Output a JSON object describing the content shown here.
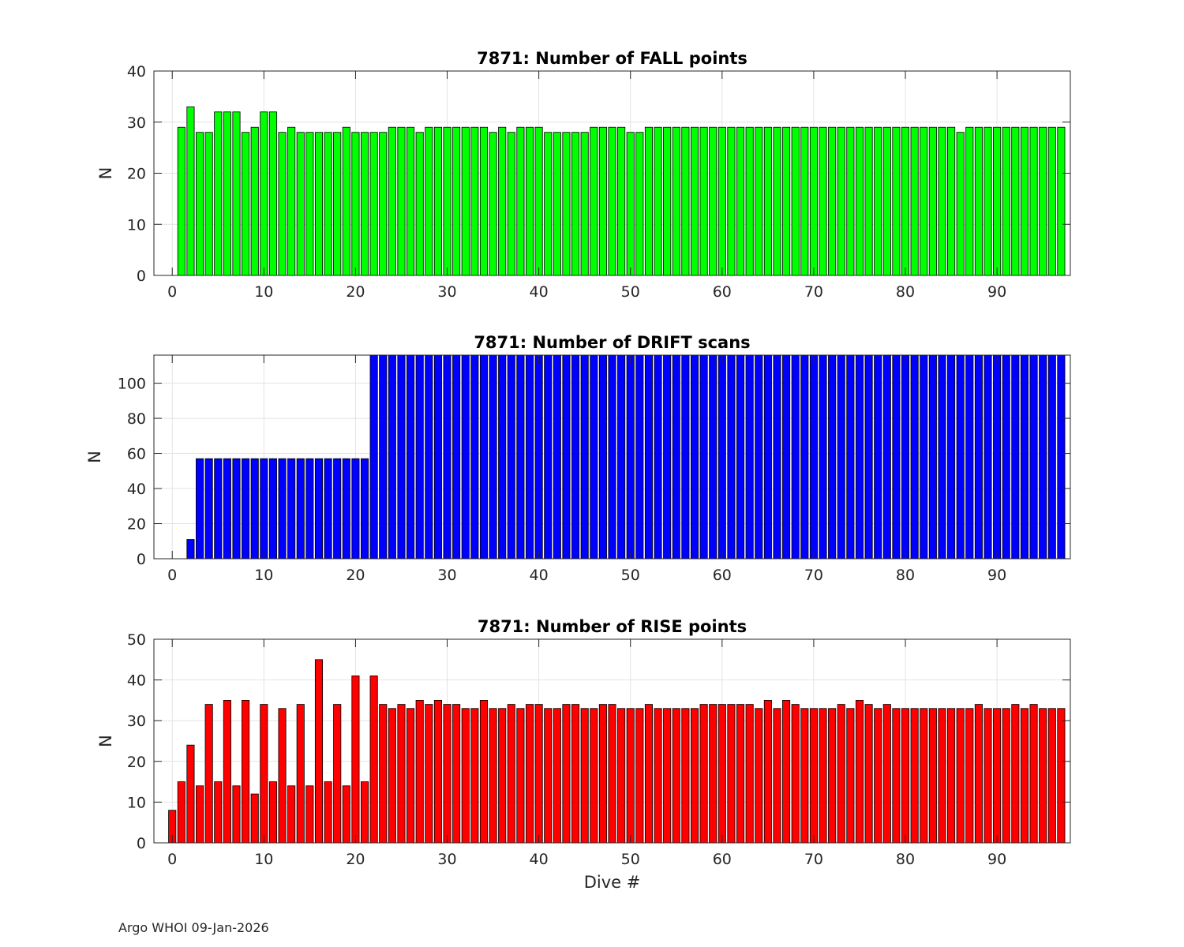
{
  "figure": {
    "footer": "Argo WHOI 09-Jan-2026"
  },
  "chart_data": [
    {
      "type": "bar",
      "title": "7871: Number of FALL points",
      "xlabel": "",
      "ylabel": "N",
      "xlim": [
        -2,
        98
      ],
      "ylim": [
        0,
        40
      ],
      "xticks": [
        0,
        10,
        20,
        30,
        40,
        50,
        60,
        70,
        80,
        90
      ],
      "yticks": [
        0,
        10,
        20,
        30,
        40
      ],
      "grid": true,
      "color": "#00ff00",
      "x": [
        0,
        1,
        2,
        3,
        4,
        5,
        6,
        7,
        8,
        9,
        10,
        11,
        12,
        13,
        14,
        15,
        16,
        17,
        18,
        19,
        20,
        21,
        22,
        23,
        24,
        25,
        26,
        27,
        28,
        29,
        30,
        31,
        32,
        33,
        34,
        35,
        36,
        37,
        38,
        39,
        40,
        41,
        42,
        43,
        44,
        45,
        46,
        47,
        48,
        49,
        50,
        51,
        52,
        53,
        54,
        55,
        56,
        57,
        58,
        59,
        60,
        61,
        62,
        63,
        64,
        65,
        66,
        67,
        68,
        69,
        70,
        71,
        72,
        73,
        74,
        75,
        76,
        77,
        78,
        79,
        80,
        81,
        82,
        83,
        84,
        85,
        86,
        87,
        88,
        89,
        90,
        91,
        92,
        93,
        94,
        95,
        96,
        97
      ],
      "values": [
        0,
        29,
        33,
        28,
        28,
        32,
        32,
        32,
        28,
        29,
        32,
        32,
        28,
        29,
        28,
        28,
        28,
        28,
        28,
        29,
        28,
        28,
        28,
        28,
        29,
        29,
        29,
        28,
        29,
        29,
        29,
        29,
        29,
        29,
        29,
        28,
        29,
        28,
        29,
        29,
        29,
        28,
        28,
        28,
        28,
        28,
        29,
        29,
        29,
        29,
        28,
        28,
        29,
        29,
        29,
        29,
        29,
        29,
        29,
        29,
        29,
        29,
        29,
        29,
        29,
        29,
        29,
        29,
        29,
        29,
        29,
        29,
        29,
        29,
        29,
        29,
        29,
        29,
        29,
        29,
        29,
        29,
        29,
        29,
        29,
        29,
        28,
        29,
        29,
        29,
        29,
        29,
        29,
        29,
        29,
        29,
        29,
        29
      ]
    },
    {
      "type": "bar",
      "title": "7871: Number of DRIFT scans",
      "xlabel": "",
      "ylabel": "N",
      "xlim": [
        -2,
        98
      ],
      "ylim": [
        0,
        116
      ],
      "xticks": [
        0,
        10,
        20,
        30,
        40,
        50,
        60,
        70,
        80,
        90
      ],
      "yticks": [
        0,
        20,
        40,
        60,
        80,
        100
      ],
      "grid": true,
      "color": "#0000ff",
      "x": [
        0,
        1,
        2,
        3,
        4,
        5,
        6,
        7,
        8,
        9,
        10,
        11,
        12,
        13,
        14,
        15,
        16,
        17,
        18,
        19,
        20,
        21,
        22,
        23,
        24,
        25,
        26,
        27,
        28,
        29,
        30,
        31,
        32,
        33,
        34,
        35,
        36,
        37,
        38,
        39,
        40,
        41,
        42,
        43,
        44,
        45,
        46,
        47,
        48,
        49,
        50,
        51,
        52,
        53,
        54,
        55,
        56,
        57,
        58,
        59,
        60,
        61,
        62,
        63,
        64,
        65,
        66,
        67,
        68,
        69,
        70,
        71,
        72,
        73,
        74,
        75,
        76,
        77,
        78,
        79,
        80,
        81,
        82,
        83,
        84,
        85,
        86,
        87,
        88,
        89,
        90,
        91,
        92,
        93,
        94,
        95,
        96,
        97
      ],
      "values": [
        0,
        0,
        11,
        57,
        57,
        57,
        57,
        57,
        57,
        57,
        57,
        57,
        57,
        57,
        57,
        57,
        57,
        57,
        57,
        57,
        57,
        57,
        116,
        116,
        116,
        116,
        116,
        116,
        116,
        116,
        116,
        116,
        116,
        116,
        116,
        116,
        116,
        116,
        116,
        116,
        116,
        116,
        116,
        116,
        116,
        116,
        116,
        116,
        116,
        116,
        116,
        116,
        116,
        116,
        116,
        116,
        116,
        116,
        116,
        116,
        116,
        116,
        116,
        116,
        116,
        116,
        116,
        116,
        116,
        116,
        116,
        116,
        116,
        116,
        116,
        116,
        116,
        116,
        116,
        116,
        116,
        116,
        116,
        116,
        116,
        116,
        116,
        116,
        116,
        116,
        116,
        116,
        116,
        116,
        116,
        116,
        116,
        116
      ]
    },
    {
      "type": "bar",
      "title": "7871: Number of RISE points",
      "xlabel": "Dive #",
      "ylabel": "N",
      "xlim": [
        -2,
        98
      ],
      "ylim": [
        0,
        50
      ],
      "xticks": [
        0,
        10,
        20,
        30,
        40,
        50,
        60,
        70,
        80,
        90
      ],
      "yticks": [
        0,
        10,
        20,
        30,
        40,
        50
      ],
      "grid": true,
      "color": "#ff0000",
      "x": [
        0,
        1,
        2,
        3,
        4,
        5,
        6,
        7,
        8,
        9,
        10,
        11,
        12,
        13,
        14,
        15,
        16,
        17,
        18,
        19,
        20,
        21,
        22,
        23,
        24,
        25,
        26,
        27,
        28,
        29,
        30,
        31,
        32,
        33,
        34,
        35,
        36,
        37,
        38,
        39,
        40,
        41,
        42,
        43,
        44,
        45,
        46,
        47,
        48,
        49,
        50,
        51,
        52,
        53,
        54,
        55,
        56,
        57,
        58,
        59,
        60,
        61,
        62,
        63,
        64,
        65,
        66,
        67,
        68,
        69,
        70,
        71,
        72,
        73,
        74,
        75,
        76,
        77,
        78,
        79,
        80,
        81,
        82,
        83,
        84,
        85,
        86,
        87,
        88,
        89,
        90,
        91,
        92,
        93,
        94,
        95,
        96,
        97
      ],
      "values": [
        8,
        15,
        24,
        14,
        34,
        15,
        35,
        14,
        35,
        12,
        34,
        15,
        33,
        14,
        34,
        14,
        45,
        15,
        34,
        14,
        41,
        15,
        41,
        34,
        33,
        34,
        33,
        35,
        34,
        35,
        34,
        34,
        33,
        33,
        35,
        33,
        33,
        34,
        33,
        34,
        34,
        33,
        33,
        34,
        34,
        33,
        33,
        34,
        34,
        33,
        33,
        33,
        34,
        33,
        33,
        33,
        33,
        33,
        34,
        34,
        34,
        34,
        34,
        34,
        33,
        35,
        33,
        35,
        34,
        33,
        33,
        33,
        33,
        34,
        33,
        35,
        34,
        33,
        34,
        33,
        33,
        33,
        33,
        33,
        33,
        33,
        33,
        33,
        34,
        33,
        33,
        33,
        34,
        33,
        34,
        33,
        33,
        33
      ]
    }
  ]
}
